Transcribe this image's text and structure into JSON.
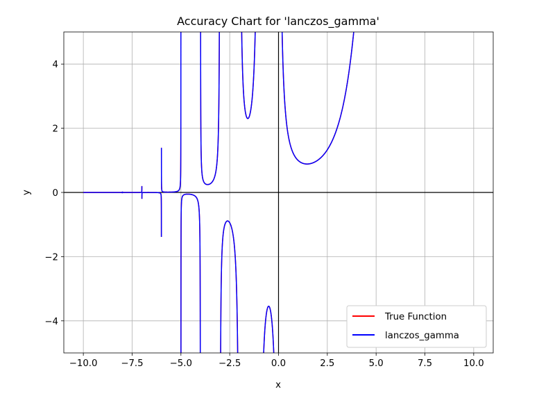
{
  "chart_data": {
    "type": "line",
    "title": "Accuracy Chart for 'lanczos_gamma'",
    "xlabel": "x",
    "ylabel": "y",
    "xlim": [
      -11,
      11
    ],
    "ylim": [
      -5,
      5
    ],
    "x_domain": [
      -10,
      10
    ],
    "grid": true,
    "legend_position": "lower right",
    "xticks": [
      -10.0,
      -7.5,
      -5.0,
      -2.5,
      0.0,
      2.5,
      5.0,
      7.5,
      10.0
    ],
    "xtick_labels": [
      "−10.0",
      "−7.5",
      "−5.0",
      "−2.5",
      "0.0",
      "2.5",
      "5.0",
      "7.5",
      "10.0"
    ],
    "yticks": [
      -4,
      -2,
      0,
      2,
      4
    ],
    "ytick_labels": [
      "−4",
      "−2",
      "0",
      "2",
      "4"
    ],
    "reference_lines": {
      "x": 0,
      "y": 0,
      "color": "#000000"
    },
    "function": "gamma",
    "sample_points": [
      {
        "x": -5.5,
        "y": 0.011
      },
      {
        "x": -4.5,
        "y": -0.06
      },
      {
        "x": -3.5,
        "y": 0.27
      },
      {
        "x": -2.5,
        "y": -0.95
      },
      {
        "x": -1.5,
        "y": 2.36
      },
      {
        "x": -0.5,
        "y": -3.54
      },
      {
        "x": 1.46,
        "y": 0.886
      },
      {
        "x": 3.8,
        "y": 5.0
      }
    ],
    "series": [
      {
        "name": "True Function",
        "color": "#ff0000"
      },
      {
        "name": "lanczos_gamma",
        "color": "#0000ff"
      }
    ]
  }
}
